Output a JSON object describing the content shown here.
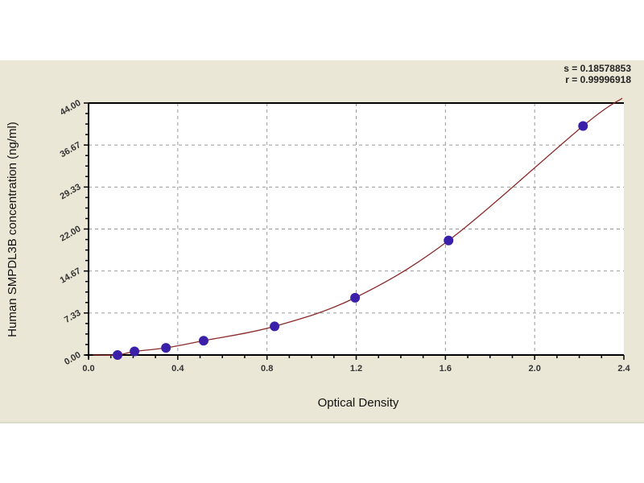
{
  "stats": {
    "s_line": "s = 0.18578853",
    "r_line": "r = 0.99996918"
  },
  "chart_data": {
    "type": "scatter",
    "title": "",
    "xlabel": "Optical Density",
    "ylabel": "Human SMPDL3B concentration (ng/ml)",
    "xlim": [
      0,
      2.4
    ],
    "ylim": [
      0,
      44
    ],
    "x_ticks": [
      "0.0",
      "0.4",
      "0.8",
      "1.2",
      "1.6",
      "2.0",
      "2.4"
    ],
    "y_ticks": [
      "0.00",
      "7.33",
      "14.67",
      "22.00",
      "29.33",
      "36.67",
      "44.00"
    ],
    "grid": true,
    "legend": "none",
    "fit_curve": true,
    "points": [
      {
        "x": 0.13,
        "y": 0
      },
      {
        "x": 0.206,
        "y": 0.625
      },
      {
        "x": 0.347,
        "y": 1.25
      },
      {
        "x": 0.516,
        "y": 2.5
      },
      {
        "x": 0.834,
        "y": 5
      },
      {
        "x": 1.195,
        "y": 10
      },
      {
        "x": 1.614,
        "y": 20
      },
      {
        "x": 2.217,
        "y": 40
      }
    ],
    "colors": {
      "points": "#3a1fa8",
      "curve": "#8b2a2a",
      "background": "#ebe7d6",
      "plot": "#ffffff"
    }
  }
}
